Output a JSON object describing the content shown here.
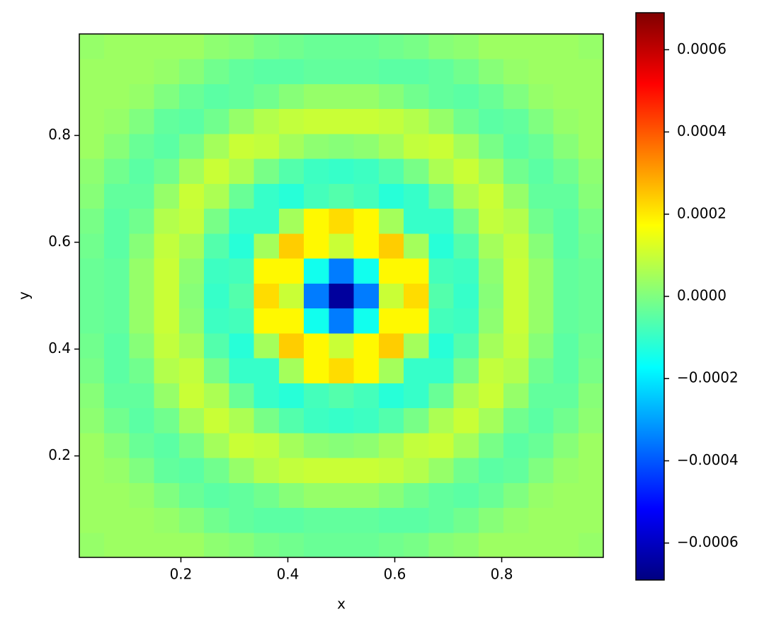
{
  "chart_data": {
    "type": "heatmap",
    "xlabel": "x",
    "ylabel": "y",
    "xlim": [
      0.01,
      0.99
    ],
    "ylim": [
      0.01,
      0.99
    ],
    "xticks": [
      0.2,
      0.4,
      0.6,
      0.8
    ],
    "yticks": [
      0.2,
      0.4,
      0.6,
      0.8
    ],
    "colormap": "jet",
    "clim": [
      -0.00069,
      0.00069
    ],
    "cticks": [
      {
        "value": -0.0006,
        "label": "−0.0006"
      },
      {
        "value": -0.0004,
        "label": "−0.0004"
      },
      {
        "value": -0.0002,
        "label": "−0.0002"
      },
      {
        "value": 0,
        "label": "0.0000"
      },
      0.0002,
      0.0004,
      0.0006
    ],
    "z": [
      [
        3e-05,
        4e-05,
        4e-05,
        4e-05,
        4e-05,
        2e-05,
        1e-05,
        -1e-05,
        -2e-05,
        -3e-05,
        -3e-05,
        -3e-05,
        -2e-05,
        -1e-05,
        1e-05,
        2e-05,
        4e-05,
        4e-05,
        4e-05,
        4e-05,
        3e-05
      ],
      [
        4e-05,
        4e-05,
        4e-05,
        3e-05,
        1e-05,
        -2e-05,
        -4e-05,
        -5e-05,
        -5e-05,
        -4e-05,
        -4e-05,
        -4e-05,
        -5e-05,
        -5e-05,
        -4e-05,
        -2e-05,
        1e-05,
        3e-05,
        4e-05,
        4e-05,
        4e-05
      ],
      [
        4e-05,
        4e-05,
        3e-05,
        0,
        -3e-05,
        -5e-05,
        -4e-05,
        -2e-05,
        1e-05,
        3e-05,
        3e-05,
        3e-05,
        1e-05,
        -2e-05,
        -4e-05,
        -5e-05,
        -3e-05,
        0,
        3e-05,
        4e-05,
        4e-05
      ],
      [
        4e-05,
        3e-05,
        0,
        -4e-05,
        -5e-05,
        -2e-05,
        3e-05,
        7e-05,
        9e-05,
        0.0001,
        0.0001,
        0.0001,
        9e-05,
        7e-05,
        3e-05,
        -2e-05,
        -5e-05,
        -4e-05,
        0,
        3e-05,
        4e-05
      ],
      [
        4e-05,
        1e-05,
        -3e-05,
        -5e-05,
        -1e-05,
        5e-05,
        0.0001,
        9e-05,
        5e-05,
        2e-05,
        1e-05,
        2e-05,
        5e-05,
        9e-05,
        0.0001,
        5e-05,
        -1e-05,
        -5e-05,
        -3e-05,
        1e-05,
        4e-05
      ],
      [
        2e-05,
        -2e-05,
        -5e-05,
        -2e-05,
        5e-05,
        0.0001,
        6e-05,
        -1e-05,
        -6e-05,
        -9e-05,
        -0.0001,
        -9e-05,
        -6e-05,
        -1e-05,
        6e-05,
        0.0001,
        5e-05,
        -2e-05,
        -5e-05,
        -2e-05,
        2e-05
      ],
      [
        1e-05,
        -4e-05,
        -4e-05,
        3e-05,
        0.0001,
        6e-05,
        -3e-05,
        -0.0001,
        -0.00012,
        -8e-05,
        -6e-05,
        -8e-05,
        -0.00012,
        -0.0001,
        -3e-05,
        6e-05,
        0.0001,
        3e-05,
        -4e-05,
        -4e-05,
        1e-05
      ],
      [
        -1e-05,
        -5e-05,
        -2e-05,
        7e-05,
        9e-05,
        -1e-05,
        -0.0001,
        -0.0001,
        5e-05,
        0.00018,
        0.00022,
        0.00018,
        5e-05,
        -0.0001,
        -0.0001,
        -1e-05,
        9e-05,
        7e-05,
        -2e-05,
        -5e-05,
        -1e-05
      ],
      [
        -2e-05,
        -5e-05,
        1e-05,
        9e-05,
        5e-05,
        -6e-05,
        -0.00012,
        5e-05,
        0.00024,
        0.00018,
        0.0001,
        0.00018,
        0.00024,
        5e-05,
        -0.00012,
        -6e-05,
        5e-05,
        9e-05,
        1e-05,
        -5e-05,
        -2e-05
      ],
      [
        -3e-05,
        -4e-05,
        3e-05,
        0.0001,
        2e-05,
        -9e-05,
        -8e-05,
        0.00018,
        0.00018,
        -0.00015,
        -0.00035,
        -0.00015,
        0.00018,
        0.00018,
        -8e-05,
        -9e-05,
        2e-05,
        0.0001,
        3e-05,
        -4e-05,
        -3e-05
      ],
      [
        -3e-05,
        -4e-05,
        3e-05,
        0.0001,
        1e-05,
        -0.0001,
        -6e-05,
        0.00022,
        0.0001,
        -0.00035,
        -0.00065,
        -0.00035,
        0.0001,
        0.00022,
        -6e-05,
        -0.0001,
        1e-05,
        0.0001,
        3e-05,
        -4e-05,
        -3e-05
      ],
      [
        -3e-05,
        -4e-05,
        3e-05,
        0.0001,
        2e-05,
        -9e-05,
        -8e-05,
        0.00018,
        0.00018,
        -0.00015,
        -0.00035,
        -0.00015,
        0.00018,
        0.00018,
        -8e-05,
        -9e-05,
        2e-05,
        0.0001,
        3e-05,
        -4e-05,
        -3e-05
      ],
      [
        -2e-05,
        -5e-05,
        1e-05,
        9e-05,
        5e-05,
        -6e-05,
        -0.00012,
        5e-05,
        0.00024,
        0.00018,
        0.0001,
        0.00018,
        0.00024,
        5e-05,
        -0.00012,
        -6e-05,
        5e-05,
        9e-05,
        1e-05,
        -5e-05,
        -2e-05
      ],
      [
        -1e-05,
        -5e-05,
        -2e-05,
        7e-05,
        9e-05,
        -1e-05,
        -0.0001,
        -0.0001,
        5e-05,
        0.00018,
        0.00022,
        0.00018,
        5e-05,
        -0.0001,
        -0.0001,
        -1e-05,
        9e-05,
        7e-05,
        -2e-05,
        -5e-05,
        -1e-05
      ],
      [
        1e-05,
        -4e-05,
        -4e-05,
        3e-05,
        0.0001,
        6e-05,
        -3e-05,
        -0.0001,
        -0.00012,
        -8e-05,
        -6e-05,
        -8e-05,
        -0.00012,
        -0.0001,
        -3e-05,
        6e-05,
        0.0001,
        3e-05,
        -4e-05,
        -4e-05,
        1e-05
      ],
      [
        2e-05,
        -2e-05,
        -5e-05,
        -2e-05,
        5e-05,
        0.0001,
        6e-05,
        -1e-05,
        -6e-05,
        -9e-05,
        -0.0001,
        -9e-05,
        -6e-05,
        -1e-05,
        6e-05,
        0.0001,
        5e-05,
        -2e-05,
        -5e-05,
        -2e-05,
        2e-05
      ],
      [
        4e-05,
        1e-05,
        -3e-05,
        -5e-05,
        -1e-05,
        5e-05,
        0.0001,
        9e-05,
        5e-05,
        2e-05,
        1e-05,
        2e-05,
        5e-05,
        9e-05,
        0.0001,
        5e-05,
        -1e-05,
        -5e-05,
        -3e-05,
        1e-05,
        4e-05
      ],
      [
        4e-05,
        3e-05,
        0,
        -4e-05,
        -5e-05,
        -2e-05,
        3e-05,
        7e-05,
        9e-05,
        0.0001,
        0.0001,
        0.0001,
        9e-05,
        7e-05,
        3e-05,
        -2e-05,
        -5e-05,
        -4e-05,
        0,
        3e-05,
        4e-05
      ],
      [
        4e-05,
        4e-05,
        3e-05,
        0,
        -3e-05,
        -5e-05,
        -4e-05,
        -2e-05,
        1e-05,
        3e-05,
        3e-05,
        3e-05,
        1e-05,
        -2e-05,
        -4e-05,
        -5e-05,
        -3e-05,
        0,
        3e-05,
        4e-05,
        4e-05
      ],
      [
        4e-05,
        4e-05,
        4e-05,
        3e-05,
        1e-05,
        -2e-05,
        -4e-05,
        -5e-05,
        -5e-05,
        -4e-05,
        -4e-05,
        -4e-05,
        -5e-05,
        -5e-05,
        -4e-05,
        -2e-05,
        1e-05,
        3e-05,
        4e-05,
        4e-05,
        4e-05
      ],
      [
        3e-05,
        4e-05,
        4e-05,
        4e-05,
        4e-05,
        2e-05,
        1e-05,
        -1e-05,
        -2e-05,
        -3e-05,
        -3e-05,
        -3e-05,
        -2e-05,
        -1e-05,
        1e-05,
        2e-05,
        4e-05,
        4e-05,
        4e-05,
        4e-05,
        3e-05
      ]
    ]
  }
}
